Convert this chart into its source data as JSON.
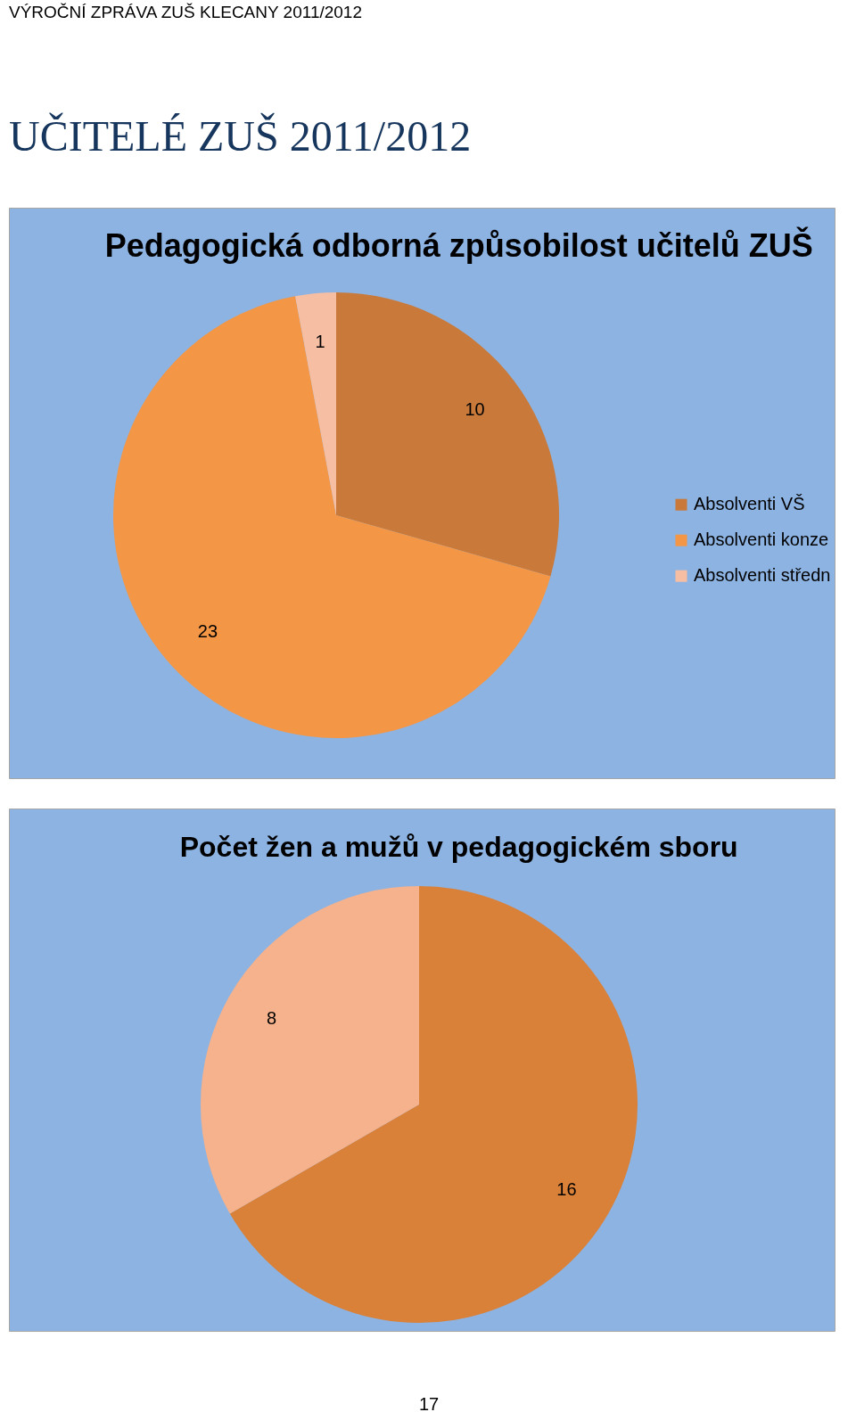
{
  "chart_data": [
    {
      "type": "pie",
      "title": "Pedagogická odborná způsobilost učitelů ZUŠ",
      "categories": [
        "Absolventi VŠ",
        "Absolventi konze",
        "Absolventi středn"
      ],
      "values": [
        10,
        23,
        1
      ],
      "colors": [
        "#c97a3a",
        "#f39645",
        "#f6bfa3"
      ],
      "data_labels": true,
      "legend": "right",
      "annotations": [
        "VÝROČNÍ ZPRÁVA ZUŠ KLECANY 2011/2012",
        "UČITELÉ ZUŠ 2011/2012"
      ]
    },
    {
      "type": "pie",
      "title": "Počet žen a mužů v pedagogickém sboru",
      "categories": [
        null,
        null
      ],
      "values": [
        16,
        8
      ],
      "colors": [
        "#d98039",
        "#f5b28c"
      ],
      "data_labels": true,
      "annotations": [
        "17"
      ]
    }
  ]
}
